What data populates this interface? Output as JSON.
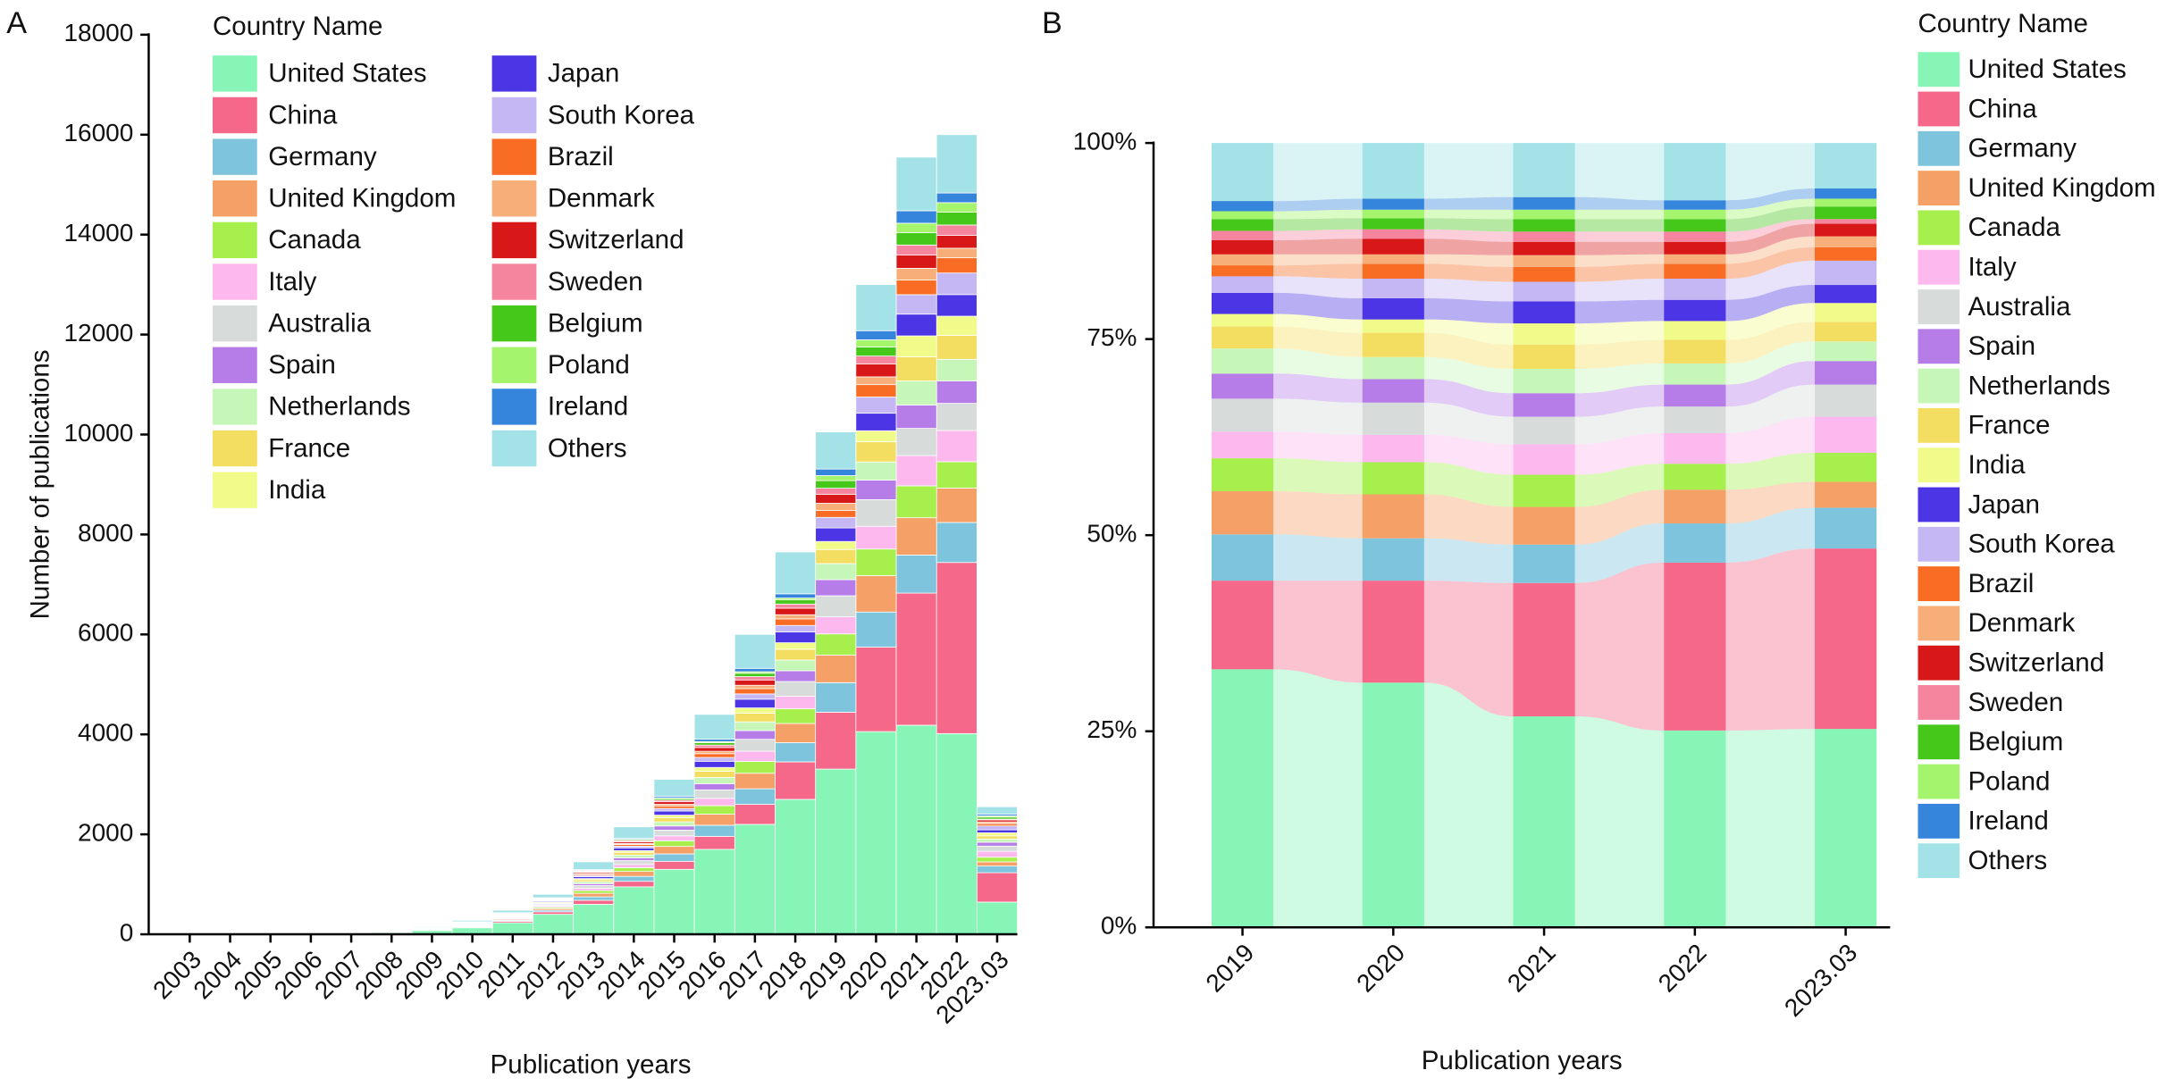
{
  "chart_data": [
    {
      "type": "bar",
      "stacked": true,
      "panel_label": "A",
      "y_label": "Number of publications",
      "x_label": "Publication years",
      "legend_title": "Country Name",
      "categories": [
        "2003",
        "2004",
        "2005",
        "2006",
        "2007",
        "2008",
        "2009",
        "2010",
        "2011",
        "2012",
        "2013",
        "2014",
        "2015",
        "2016",
        "2017",
        "2018",
        "2019",
        "2020",
        "2021",
        "2022",
        "2023.03"
      ],
      "ylim": [
        0,
        18000
      ],
      "yticks": [
        0,
        2000,
        4000,
        6000,
        8000,
        10000,
        12000,
        14000,
        16000,
        18000
      ],
      "series": [
        {
          "name": "United States",
          "color": "#86f5b6",
          "values": [
            6,
            9,
            12,
            16,
            22,
            34,
            75,
            130,
            230,
            400,
            600,
            950,
            1300,
            1700,
            2200,
            2700,
            3306,
            4056,
            4183,
            4016,
            645
          ]
        },
        {
          "name": "China",
          "color": "#f5688a",
          "values": [
            0,
            0,
            1,
            1,
            2,
            3,
            8,
            15,
            30,
            50,
            80,
            110,
            160,
            260,
            400,
            750,
            1136,
            1690,
            2644,
            3424,
            587
          ]
        },
        {
          "name": "Germany",
          "color": "#7ec4dd",
          "values": [
            1,
            1,
            1,
            1,
            2,
            2,
            6,
            12,
            20,
            32,
            70,
            99,
            149,
            222,
            311,
            384,
            593,
            702,
            762,
            800,
            133
          ]
        },
        {
          "name": "United Kingdom",
          "color": "#f5a066",
          "values": [
            1,
            1,
            1,
            1,
            2,
            2,
            6,
            12,
            20,
            32,
            70,
            99,
            149,
            222,
            311,
            384,
            553,
            728,
            746,
            688,
            84
          ]
        },
        {
          "name": "Canada",
          "color": "#a6ef4d",
          "values": [
            1,
            1,
            1,
            1,
            1,
            2,
            5,
            9,
            15,
            25,
            54,
            76,
            114,
            170,
            238,
            294,
            422,
            533,
            638,
            528,
            94
          ]
        },
        {
          "name": "Italy",
          "color": "#fdb8ee",
          "values": [
            0,
            1,
            1,
            1,
            1,
            1,
            4,
            8,
            13,
            21,
            46,
            65,
            98,
            146,
            204,
            252,
            342,
            455,
            606,
            624,
            117
          ]
        },
        {
          "name": "Australia",
          "color": "#d7dcdb",
          "values": [
            0,
            1,
            1,
            1,
            1,
            2,
            5,
            9,
            15,
            25,
            54,
            76,
            114,
            170,
            238,
            294,
            422,
            533,
            544,
            544,
            105
          ]
        },
        {
          "name": "Spain",
          "color": "#b67de8",
          "values": [
            0,
            0,
            1,
            1,
            1,
            1,
            3,
            7,
            11,
            18,
            39,
            55,
            83,
            124,
            174,
            215,
            322,
            390,
            467,
            448,
            77
          ]
        },
        {
          "name": "Netherlands",
          "color": "#c6f7b8",
          "values": [
            0,
            0,
            0,
            1,
            1,
            1,
            3,
            7,
            11,
            18,
            39,
            55,
            83,
            124,
            174,
            215,
            322,
            364,
            482,
            432,
            64
          ]
        },
        {
          "name": "France",
          "color": "#f4de62",
          "values": [
            0,
            0,
            0,
            1,
            1,
            1,
            3,
            7,
            11,
            18,
            39,
            55,
            83,
            124,
            174,
            215,
            281,
            403,
            482,
            480,
            64
          ]
        },
        {
          "name": "India",
          "color": "#f1fb8a",
          "values": [
            0,
            0,
            0,
            0,
            1,
            1,
            2,
            4,
            7,
            11,
            24,
            34,
            51,
            76,
            106,
            131,
            161,
            221,
            420,
            384,
            61
          ]
        },
        {
          "name": "Japan",
          "color": "#4c35e4",
          "values": [
            0,
            0,
            0,
            1,
            1,
            1,
            3,
            7,
            11,
            18,
            39,
            55,
            83,
            124,
            174,
            215,
            271,
            351,
            435,
            432,
            59
          ]
        },
        {
          "name": "South Korea",
          "color": "#c5b6f4",
          "values": [
            0,
            0,
            0,
            0,
            0,
            1,
            2,
            4,
            7,
            11,
            24,
            34,
            51,
            76,
            106,
            131,
            211,
            325,
            389,
            432,
            79
          ]
        },
        {
          "name": "Brazil",
          "color": "#f86c24",
          "values": [
            0,
            0,
            0,
            0,
            0,
            1,
            2,
            4,
            7,
            11,
            24,
            34,
            51,
            76,
            106,
            131,
            141,
            247,
            295,
            304,
            43
          ]
        },
        {
          "name": "Denmark",
          "color": "#f7ae78",
          "values": [
            0,
            0,
            0,
            0,
            0,
            0,
            1,
            3,
            4,
            7,
            15,
            21,
            32,
            48,
            67,
            83,
            141,
            156,
            233,
            192,
            36
          ]
        },
        {
          "name": "Switzerland",
          "color": "#d81818",
          "values": [
            0,
            0,
            0,
            0,
            1,
            1,
            2,
            4,
            7,
            11,
            24,
            34,
            51,
            76,
            106,
            131,
            181,
            260,
            264,
            256,
            41
          ]
        },
        {
          "name": "Sweden",
          "color": "#f5849f",
          "values": [
            0,
            0,
            0,
            0,
            0,
            1,
            1,
            3,
            4,
            7,
            15,
            21,
            32,
            48,
            67,
            83,
            121,
            156,
            202,
            208,
            15
          ]
        },
        {
          "name": "Belgium",
          "color": "#46c81a",
          "values": [
            0,
            0,
            0,
            0,
            0,
            0,
            1,
            3,
            4,
            7,
            15,
            21,
            32,
            48,
            67,
            83,
            151,
            182,
            249,
            256,
            41
          ]
        },
        {
          "name": "Poland",
          "color": "#a4f46e",
          "values": [
            0,
            0,
            0,
            0,
            0,
            0,
            1,
            1,
            2,
            3,
            7,
            10,
            15,
            22,
            31,
            38,
            101,
            143,
            187,
            192,
            26
          ]
        },
        {
          "name": "Ireland",
          "color": "#3585dc",
          "values": [
            0,
            0,
            0,
            0,
            0,
            0,
            1,
            3,
            4,
            7,
            15,
            21,
            32,
            48,
            67,
            83,
            131,
            182,
            249,
            192,
            33
          ]
        },
        {
          "name": "Others",
          "color": "#a3e3e7",
          "values": [
            1,
            1,
            1,
            2,
            3,
            5,
            16,
            28,
            47,
            68,
            157,
            225,
            337,
            496,
            679,
            838,
            744,
            923,
            1073,
            1168,
            148
          ]
        }
      ]
    },
    {
      "type": "bar",
      "stacked": true,
      "flows": true,
      "panel_label": "B",
      "x_label": "Publication years",
      "legend_title": "Country Name",
      "categories": [
        "2019",
        "2020",
        "2021",
        "2022",
        "2023.03"
      ],
      "ylim": [
        0,
        100
      ],
      "yticks": [
        {
          "value": 0,
          "label": "0%"
        },
        {
          "value": 25,
          "label": "25%"
        },
        {
          "value": 50,
          "label": "50%"
        },
        {
          "value": 75,
          "label": "75%"
        },
        {
          "value": 100,
          "label": "100%"
        }
      ],
      "series": [
        {
          "name": "United States",
          "color": "#86f5b6",
          "values": [
            32.9,
            31.2,
            26.9,
            25.1,
            25.3
          ]
        },
        {
          "name": "China",
          "color": "#f5688a",
          "values": [
            11.3,
            13,
            17,
            21.4,
            23
          ]
        },
        {
          "name": "Germany",
          "color": "#7ec4dd",
          "values": [
            5.9,
            5.4,
            4.9,
            5,
            5.2
          ]
        },
        {
          "name": "United Kingdom",
          "color": "#f5a066",
          "values": [
            5.5,
            5.6,
            4.8,
            4.3,
            3.3
          ]
        },
        {
          "name": "Canada",
          "color": "#a6ef4d",
          "values": [
            4.2,
            4.1,
            4.1,
            3.3,
            3.7
          ]
        },
        {
          "name": "Italy",
          "color": "#fdb8ee",
          "values": [
            3.4,
            3.5,
            3.9,
            3.9,
            4.6
          ]
        },
        {
          "name": "Australia",
          "color": "#d7dcdb",
          "values": [
            4.2,
            4.1,
            3.5,
            3.4,
            4.1
          ]
        },
        {
          "name": "Spain",
          "color": "#b67de8",
          "values": [
            3.2,
            3,
            3,
            2.8,
            3
          ]
        },
        {
          "name": "Netherlands",
          "color": "#c6f7b8",
          "values": [
            3.2,
            2.8,
            3.1,
            2.7,
            2.5
          ]
        },
        {
          "name": "France",
          "color": "#f4de62",
          "values": [
            2.8,
            3.1,
            3.1,
            3,
            2.5
          ]
        },
        {
          "name": "India",
          "color": "#f1fb8a",
          "values": [
            1.6,
            1.7,
            2.7,
            2.4,
            2.4
          ]
        },
        {
          "name": "Japan",
          "color": "#4c35e4",
          "values": [
            2.7,
            2.7,
            2.8,
            2.7,
            2.3
          ]
        },
        {
          "name": "South Korea",
          "color": "#c5b6f4",
          "values": [
            2.1,
            2.5,
            2.5,
            2.7,
            3.1
          ]
        },
        {
          "name": "Brazil",
          "color": "#f86c24",
          "values": [
            1.4,
            1.9,
            1.9,
            1.9,
            1.7
          ]
        },
        {
          "name": "Denmark",
          "color": "#f7ae78",
          "values": [
            1.4,
            1.2,
            1.5,
            1.2,
            1.4
          ]
        },
        {
          "name": "Switzerland",
          "color": "#d81818",
          "values": [
            1.8,
            2,
            1.7,
            1.6,
            1.6
          ]
        },
        {
          "name": "Sweden",
          "color": "#f5849f",
          "values": [
            1.2,
            1.2,
            1.3,
            1.3,
            0.6
          ]
        },
        {
          "name": "Belgium",
          "color": "#46c81a",
          "values": [
            1.5,
            1.4,
            1.6,
            1.6,
            1.6
          ]
        },
        {
          "name": "Poland",
          "color": "#a4f46e",
          "values": [
            1,
            1.1,
            1.2,
            1.2,
            1
          ]
        },
        {
          "name": "Ireland",
          "color": "#3585dc",
          "values": [
            1.3,
            1.4,
            1.6,
            1.2,
            1.3
          ]
        },
        {
          "name": "Others",
          "color": "#a3e3e7",
          "values": [
            7.4,
            7.1,
            6.9,
            7.3,
            5.8
          ]
        }
      ]
    }
  ]
}
